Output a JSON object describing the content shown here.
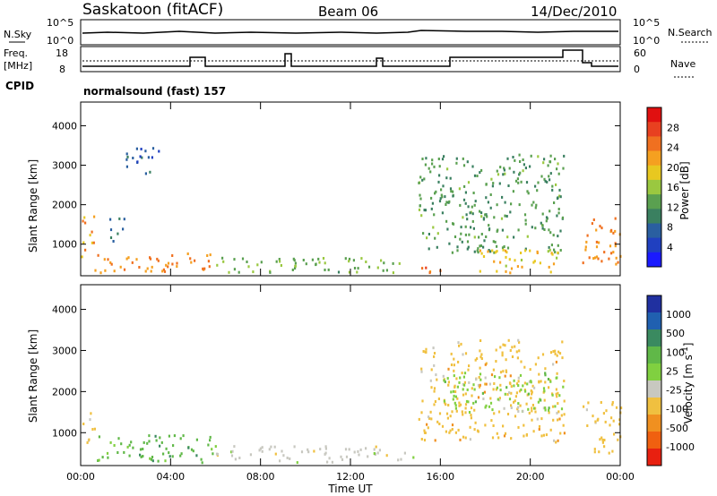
{
  "header": {
    "station": "Saskatoon (fitACF)",
    "beam": "Beam 06",
    "date": "14/Dec/2010"
  },
  "strip_labels": {
    "nsky": "N.Sky",
    "nsky_ticks": [
      "10^5",
      "10^0"
    ],
    "nsearch": "N.Search",
    "nsearch_ticks": [
      "10^5",
      "10^0"
    ],
    "freq": "Freq.",
    "freq_unit": "[MHz]",
    "freq_ticks": [
      "18",
      "8"
    ],
    "nave": "Nave",
    "nave_ticks": [
      "60",
      "0"
    ],
    "cpid": "CPID",
    "cpid_value": "normalsound (fast) 157"
  },
  "colors": {
    "power_scale": [
      "#1a1aff",
      "#2040c0",
      "#2a5fa0",
      "#3a8060",
      "#5aa050",
      "#9ac840",
      "#e8c820",
      "#f5a020",
      "#f07020",
      "#e84020",
      "#e01010"
    ],
    "velocity_scale": [
      "#2030a0",
      "#2060b0",
      "#3a8a60",
      "#60b848",
      "#80d040",
      "#c8c8c0",
      "#f0c040",
      "#f09020",
      "#f06010",
      "#e82010"
    ]
  },
  "chart_data": [
    {
      "type": "heatmap",
      "panel": "power",
      "ylabel": "Slant Range [km]",
      "xlabel": "",
      "x_ticks": [
        "00:00",
        "04:00",
        "08:00",
        "12:00",
        "16:00",
        "20:00",
        "00:00"
      ],
      "y_ticks": [
        1000,
        2000,
        3000,
        4000
      ],
      "ylim": [
        200,
        4600
      ],
      "xlim_hours": [
        0,
        24
      ],
      "colorbar_label": "Power [dB]",
      "colorbar_ticks": [
        4,
        8,
        12,
        16,
        20,
        24,
        28
      ],
      "regions": [
        {
          "t": [
            0.0,
            0.6
          ],
          "r": [
            700,
            1800
          ],
          "v": 22
        },
        {
          "t": [
            0.6,
            6.0
          ],
          "r": [
            300,
            800
          ],
          "v": 24
        },
        {
          "t": [
            6.0,
            14.5
          ],
          "r": [
            300,
            700
          ],
          "v": 14
        },
        {
          "t": [
            14.5,
            16.0
          ],
          "r": [
            300,
            500
          ],
          "v": 26
        },
        {
          "t": [
            15.0,
            21.5
          ],
          "r": [
            800,
            3300
          ],
          "v": 12
        },
        {
          "t": [
            17.5,
            21.5
          ],
          "r": [
            300,
            900
          ],
          "v": 20
        },
        {
          "t": [
            22.3,
            24.0
          ],
          "r": [
            500,
            1800
          ],
          "v": 24
        },
        {
          "t": [
            1.2,
            2.0
          ],
          "r": [
            1100,
            1700
          ],
          "v": 8
        },
        {
          "t": [
            2.0,
            3.5
          ],
          "r": [
            2800,
            3500
          ],
          "v": 6
        }
      ]
    },
    {
      "type": "heatmap",
      "panel": "velocity",
      "ylabel": "Slant Range [km]",
      "xlabel": "Time UT",
      "x_ticks": [
        "00:00",
        "04:00",
        "08:00",
        "12:00",
        "16:00",
        "20:00",
        "00:00"
      ],
      "y_ticks": [
        1000,
        2000,
        3000,
        4000
      ],
      "ylim": [
        200,
        4600
      ],
      "xlim_hours": [
        0,
        24
      ],
      "colorbar_label": "Velocity [m s^-1]",
      "colorbar_ticks": [
        1000,
        500,
        100,
        25,
        -25,
        -100,
        -500,
        -1000
      ],
      "regions": [
        {
          "t": [
            0.0,
            0.6
          ],
          "r": [
            700,
            1500
          ],
          "v": -300
        },
        {
          "t": [
            0.6,
            6.0
          ],
          "r": [
            300,
            1000
          ],
          "v": 80
        },
        {
          "t": [
            6.0,
            15.0
          ],
          "r": [
            300,
            700
          ],
          "v": -60
        },
        {
          "t": [
            15.0,
            21.5
          ],
          "r": [
            800,
            3300
          ],
          "v": -200
        },
        {
          "t": [
            16.0,
            21.5
          ],
          "r": [
            1500,
            2500
          ],
          "v": 0
        },
        {
          "t": [
            22.3,
            24.0
          ],
          "r": [
            500,
            1800
          ],
          "v": -150
        }
      ]
    }
  ]
}
